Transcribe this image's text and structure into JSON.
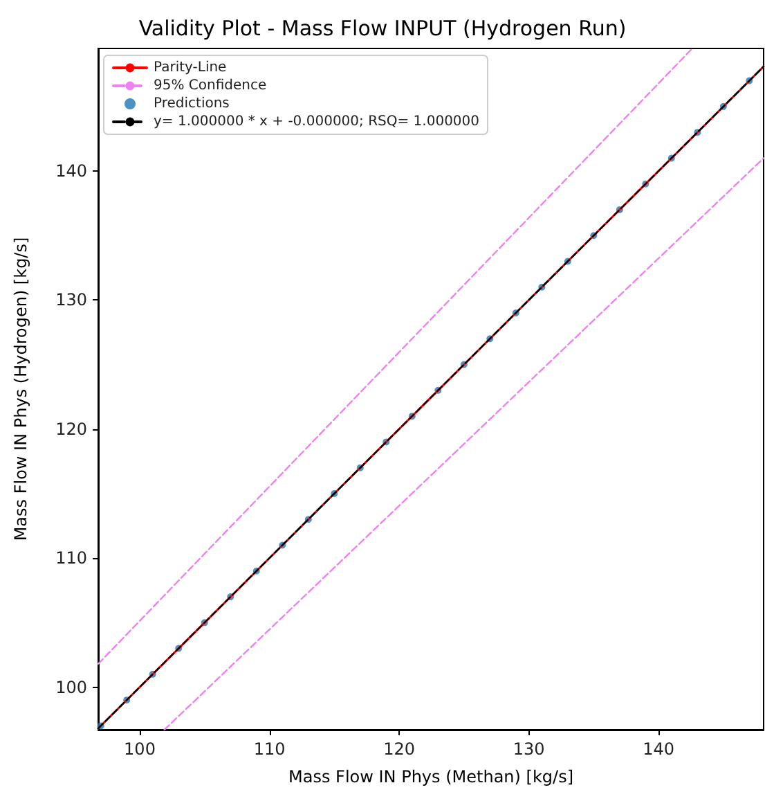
{
  "chart_data": {
    "type": "line",
    "title": "Validity Plot - Mass Flow INPUT (Hydrogen Run)",
    "xlabel": "Mass Flow IN Phys (Methan) [kg/s]",
    "ylabel": "Mass Flow IN Phys (Hydrogen) [kg/s]",
    "xlim": [
      96.8,
      148.1
    ],
    "ylim": [
      96.7,
      149.5
    ],
    "xticks": [
      100,
      110,
      120,
      130,
      140
    ],
    "yticks": [
      100,
      110,
      120,
      130,
      140
    ],
    "grid": false,
    "legend": "top left",
    "series": [
      {
        "name": "Parity-Line",
        "color": "#ff0000",
        "line_style": "solid",
        "marker": "none",
        "x": [
          96.8,
          148.1
        ],
        "values": [
          96.8,
          148.1
        ]
      },
      {
        "name": "95% Confidence",
        "color": "#ee82ee",
        "line_style": "dashed",
        "marker": "none",
        "x": [
          96.8,
          142.6,
          null,
          101.9,
          148.1
        ],
        "values": [
          101.8,
          149.5,
          null,
          96.7,
          141.0
        ]
      },
      {
        "name": "Predictions",
        "type": "scatter",
        "color": "#1f77b4",
        "marker": "circle",
        "x": [
          97,
          99,
          101,
          103,
          105,
          107,
          109,
          111,
          113,
          115,
          117,
          119,
          121,
          123,
          125,
          127,
          129,
          131,
          133,
          135,
          137,
          139,
          141,
          143,
          145,
          147
        ],
        "values": [
          97,
          99,
          101,
          103,
          105,
          107,
          109,
          111,
          113,
          115,
          117,
          119,
          121,
          123,
          125,
          127,
          129,
          131,
          133,
          135,
          137,
          139,
          141,
          143,
          145,
          147
        ]
      },
      {
        "name": "y= 1.000000 * x + -0.000000; RSQ= 1.000000",
        "color": "#000000",
        "line_style": "dashed",
        "marker": "none",
        "x": [
          96.8,
          148.1
        ],
        "values": [
          96.8,
          148.1
        ]
      }
    ]
  }
}
